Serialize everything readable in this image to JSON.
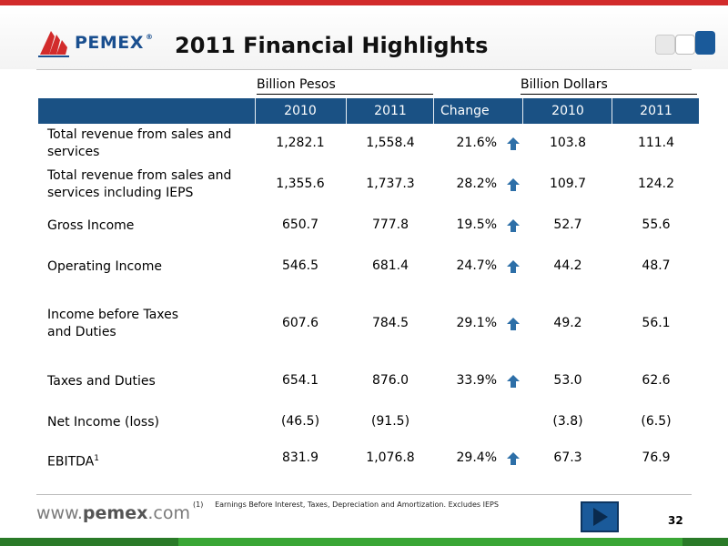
{
  "header": {
    "brand": "PEMEX",
    "registered_mark": "®",
    "title": "2011 Financial Highlights"
  },
  "groups": {
    "pesos": "Billion Pesos",
    "dollars": "Billion Dollars"
  },
  "columns": [
    "2010",
    "2011",
    "Change",
    "2010",
    "2011"
  ],
  "rows": [
    {
      "label": "Total revenue from sales and services",
      "p2010": "1,282.1",
      "p2011": "1,558.4",
      "change": "21.6%",
      "up": true,
      "d2010": "103.8",
      "d2011": "111.4"
    },
    {
      "label": "Total revenue from sales and services including IEPS",
      "p2010": "1,355.6",
      "p2011": "1,737.3",
      "change": "28.2%",
      "up": true,
      "d2010": "109.7",
      "d2011": "124.2"
    },
    {
      "label": "Gross Income",
      "p2010": "650.7",
      "p2011": "777.8",
      "change": "19.5%",
      "up": true,
      "d2010": "52.7",
      "d2011": "55.6"
    },
    {
      "label": "Operating Income",
      "p2010": "546.5",
      "p2011": "681.4",
      "change": "24.7%",
      "up": true,
      "d2010": "44.2",
      "d2011": "48.7"
    },
    {
      "label": "Income before Taxes and Duties",
      "p2010": "607.6",
      "p2011": "784.5",
      "change": "29.1%",
      "up": true,
      "d2010": "49.2",
      "d2011": "56.1"
    },
    {
      "label": "Taxes and Duties",
      "p2010": "654.1",
      "p2011": "876.0",
      "change": "33.9%",
      "up": true,
      "d2010": "53.0",
      "d2011": "62.6"
    },
    {
      "label": "Net Income (loss)",
      "p2010": "(46.5)",
      "p2011": "(91.5)",
      "change": "",
      "up": false,
      "d2010": "(3.8)",
      "d2011": "(6.5)"
    },
    {
      "label": "EBITDA",
      "label_sup": "1",
      "p2010": "831.9",
      "p2011": "1,076.8",
      "change": "29.4%",
      "up": true,
      "d2010": "67.3",
      "d2011": "76.9"
    }
  ],
  "footnote": {
    "marker": "(1)",
    "text": "Earnings Before Interest, Taxes, Depreciation and Amortization. Excludes IEPS"
  },
  "footer": {
    "url_prefix": "www.",
    "url_brand": "pemex",
    "url_suffix": ".com",
    "page_number": "32"
  },
  "icons": {
    "change_arrow": "up-arrow-icon",
    "next": "play-next-icon"
  },
  "colors": {
    "header_blue": "#1a5184",
    "arrow_blue": "#2d6fa8",
    "brand_red": "#d22b2b",
    "footer_green": "#3aa635"
  }
}
